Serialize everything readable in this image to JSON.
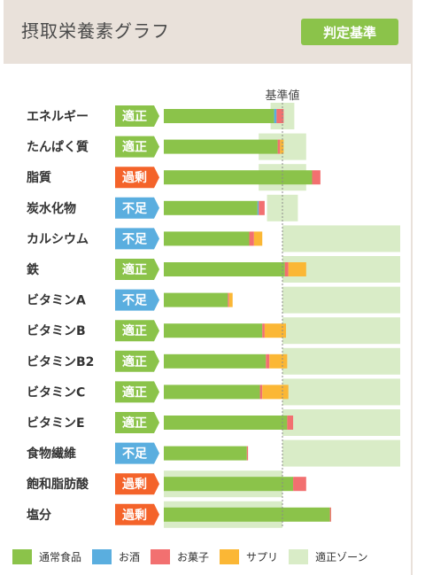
{
  "header": {
    "title": "摂取栄養素グラフ",
    "standard_button_label": "判定基準"
  },
  "chart_data": {
    "type": "bar",
    "stacked": true,
    "orientation": "horizontal",
    "reference_label": "基準値",
    "categories": [
      "エネルギー",
      "たんぱく質",
      "脂質",
      "炭水化物",
      "カルシウム",
      "鉄",
      "ビタミンA",
      "ビタミンB",
      "ビタミンB2",
      "ビタミンC",
      "ビタミンE",
      "食物繊維",
      "飽和脂肪酸",
      "塩分"
    ],
    "statuses": [
      "適正",
      "適正",
      "過剰",
      "不足",
      "不足",
      "適正",
      "不足",
      "適正",
      "適正",
      "適正",
      "適正",
      "不足",
      "過剰",
      "過剰"
    ],
    "status_colors": {
      "適正": "#8bc34a",
      "過剰": "#f4632a",
      "不足": "#5aaedf"
    },
    "series": [
      {
        "name": "通常食品",
        "color": "#8bc34a",
        "values": [
          93,
          96,
          125,
          79,
          72,
          102,
          54,
          83,
          86,
          81,
          104,
          70,
          109,
          140
        ]
      },
      {
        "name": "お酒",
        "color": "#5aaedf",
        "values": [
          2,
          0,
          0,
          1,
          0,
          0,
          0,
          0,
          0,
          0,
          0,
          0,
          0,
          0
        ]
      },
      {
        "name": "お菓子",
        "color": "#f27070",
        "values": [
          6,
          2,
          7,
          5,
          4,
          3,
          1,
          2,
          3,
          2,
          5,
          1,
          11,
          1
        ]
      },
      {
        "name": "サプリ",
        "color": "#fbb735",
        "values": [
          0,
          3,
          0,
          0,
          7,
          15,
          3,
          18,
          15,
          22,
          0,
          0,
          0,
          0
        ]
      }
    ],
    "zones": [
      [
        90,
        110
      ],
      [
        80,
        120
      ],
      [
        80,
        120
      ],
      [
        87,
        113
      ],
      [
        100,
        200
      ],
      [
        100,
        200
      ],
      [
        100,
        200
      ],
      [
        100,
        200
      ],
      [
        100,
        200
      ],
      [
        100,
        200
      ],
      [
        100,
        200
      ],
      [
        100,
        200
      ],
      [
        0,
        100
      ],
      [
        0,
        100
      ]
    ],
    "zone_label": "適正ゾーン",
    "zone_color": "#d9ecc7",
    "reference_value": 100,
    "xlim": [
      0,
      200
    ]
  }
}
